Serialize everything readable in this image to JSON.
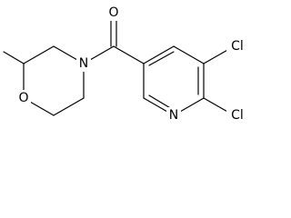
{
  "atoms": {
    "carbonyl_oxygen": "O",
    "morpholine_nitrogen": "N",
    "morpholine_oxygen": "O",
    "pyridine_nitrogen": "N",
    "chlorine_5": "Cl",
    "chlorine_6": "Cl"
  }
}
